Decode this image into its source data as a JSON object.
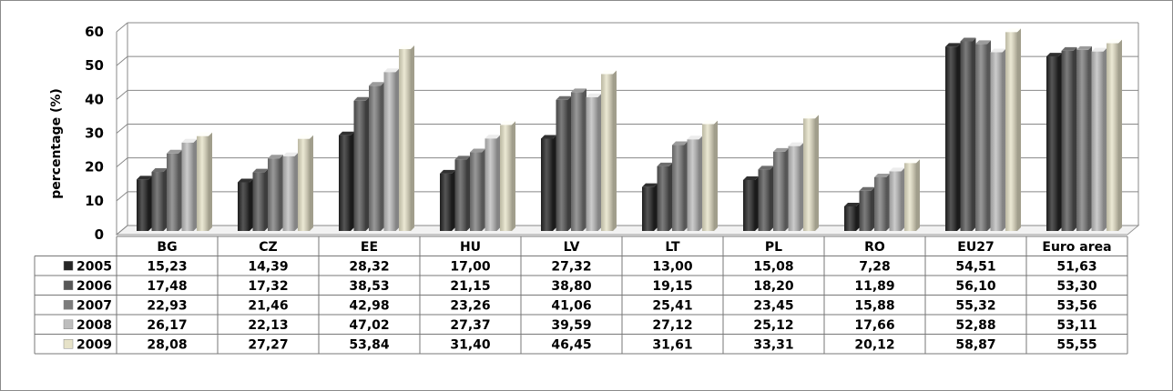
{
  "chart_data": {
    "type": "bar",
    "ylabel": "percentage (%)",
    "ylim": [
      0,
      60
    ],
    "yticks": [
      "0",
      "10",
      "20",
      "30",
      "40",
      "50",
      "60"
    ],
    "categories": [
      "BG",
      "CZ",
      "EE",
      "HU",
      "LV",
      "LT",
      "PL",
      "RO",
      "EU27",
      "Euro area"
    ],
    "series": [
      {
        "name": "2005",
        "color": "#262626",
        "values": [
          15.23,
          14.39,
          28.32,
          17.0,
          27.32,
          13.0,
          15.08,
          7.28,
          54.51,
          51.63
        ],
        "labels": [
          "15,23",
          "14,39",
          "28,32",
          "17,00",
          "27,32",
          "13,00",
          "15,08",
          "7,28",
          "54,51",
          "51,63"
        ]
      },
      {
        "name": "2006",
        "color": "#575757",
        "values": [
          17.48,
          17.32,
          38.53,
          21.15,
          38.8,
          19.15,
          18.2,
          11.89,
          56.1,
          53.3
        ],
        "labels": [
          "17,48",
          "17,32",
          "38,53",
          "21,15",
          "38,80",
          "19,15",
          "18,20",
          "11,89",
          "56,10",
          "53,30"
        ]
      },
      {
        "name": "2007",
        "color": "#7c7c7c",
        "values": [
          22.93,
          21.46,
          42.98,
          23.26,
          41.06,
          25.41,
          23.45,
          15.88,
          55.32,
          53.56
        ],
        "labels": [
          "22,93",
          "21,46",
          "42,98",
          "23,26",
          "41,06",
          "25,41",
          "23,45",
          "15,88",
          "55,32",
          "53,56"
        ]
      },
      {
        "name": "2008",
        "color": "#bdbdbd",
        "values": [
          26.17,
          22.13,
          47.02,
          27.37,
          39.59,
          27.12,
          25.12,
          17.66,
          52.88,
          53.11
        ],
        "labels": [
          "26,17",
          "22,13",
          "47,02",
          "27,37",
          "39,59",
          "27,12",
          "25,12",
          "17,66",
          "52,88",
          "53,11"
        ]
      },
      {
        "name": "2009",
        "color": "#e6e2c8",
        "values": [
          28.08,
          27.27,
          53.84,
          31.4,
          46.45,
          31.61,
          33.31,
          20.12,
          58.87,
          55.55
        ],
        "labels": [
          "28,08",
          "27,27",
          "53,84",
          "31,40",
          "46,45",
          "31,61",
          "33,31",
          "20,12",
          "58,87",
          "55,55"
        ]
      }
    ],
    "grid": true,
    "legend": "data-table"
  }
}
